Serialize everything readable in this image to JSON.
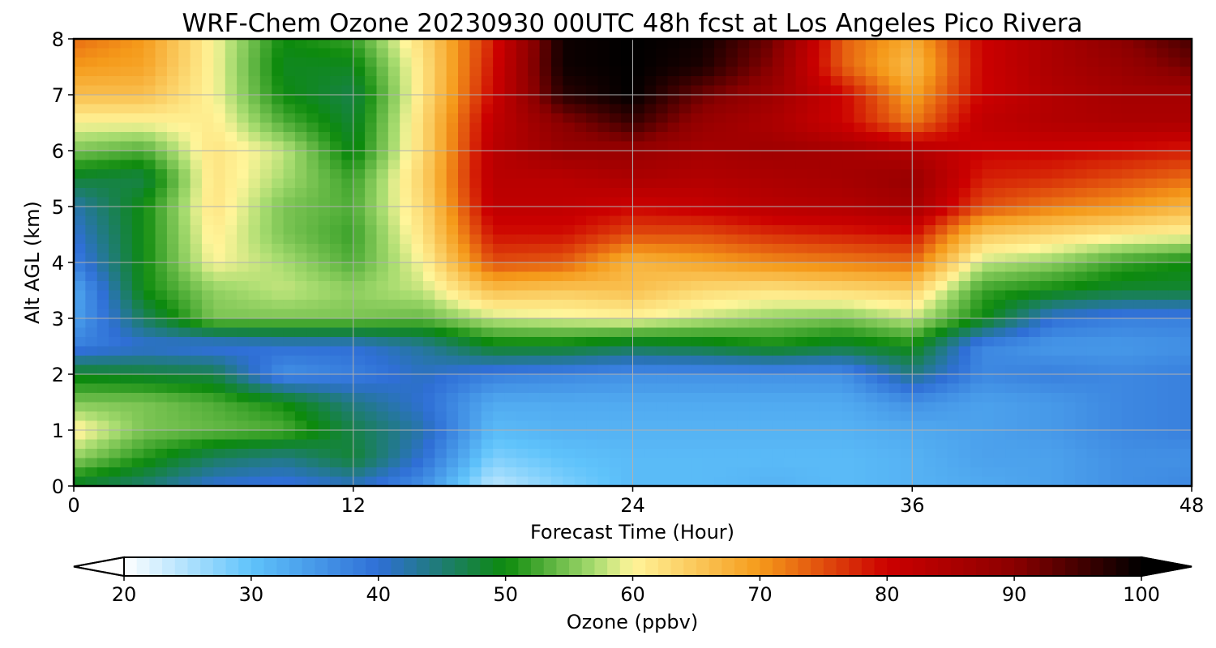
{
  "chart_data": {
    "type": "heatmap",
    "title": "WRF-Chem Ozone  20230930 00UTC 48h fcst at Los Angeles Pico Rivera",
    "xlabel": "Forecast Time (Hour)",
    "ylabel": "Alt AGL (km)",
    "xlim": [
      0,
      48
    ],
    "ylim": [
      0,
      8
    ],
    "xticks": [
      0,
      12,
      24,
      36,
      48
    ],
    "yticks": [
      0,
      1,
      2,
      3,
      4,
      5,
      6,
      7,
      8
    ],
    "grid": true,
    "colorbar": {
      "label": "Ozone  (ppbv)",
      "min": 20,
      "max": 100,
      "ticks": [
        20,
        30,
        40,
        50,
        60,
        70,
        80,
        90,
        100
      ],
      "extend": "both",
      "colors": [
        "#ffffff",
        "#5fc3fb",
        "#2f6fd6",
        "#0d8a0d",
        "#a8dc70",
        "#fff59a",
        "#f59a1a",
        "#cc0000",
        "#8b0000",
        "#000000"
      ],
      "color_stops": [
        20,
        30,
        40,
        50,
        57,
        60,
        70,
        80,
        90,
        100
      ]
    },
    "x_hours": [
      0,
      3,
      6,
      9,
      12,
      15,
      18,
      21,
      24,
      27,
      30,
      33,
      36,
      39,
      42,
      45,
      48
    ],
    "y_km": [
      0,
      0.5,
      1,
      1.5,
      2,
      2.5,
      3,
      3.5,
      4,
      4.5,
      5,
      5.5,
      6,
      6.5,
      7,
      7.5,
      8
    ],
    "values_ppbv": [
      [
        48,
        45,
        40,
        39,
        41,
        36,
        24,
        28,
        31,
        31,
        32,
        31,
        32,
        33,
        34,
        36,
        37
      ],
      [
        56,
        51,
        46,
        44,
        48,
        40,
        28,
        30,
        31,
        31,
        31,
        31,
        32,
        34,
        34,
        36,
        36
      ],
      [
        61,
        55,
        54,
        53,
        47,
        42,
        31,
        32,
        32,
        32,
        32,
        32,
        33,
        34,
        35,
        37,
        38
      ],
      [
        55,
        55,
        53,
        50,
        44,
        40,
        33,
        33,
        33,
        33,
        33,
        33,
        36,
        34,
        35,
        37,
        38
      ],
      [
        49,
        48,
        47,
        36,
        38,
        41,
        38,
        37,
        36,
        36,
        36,
        36,
        44,
        37,
        38,
        37,
        38
      ],
      [
        38,
        40,
        39,
        40,
        40,
        43,
        49,
        49,
        47,
        48,
        50,
        48,
        50,
        37,
        35,
        35,
        36
      ],
      [
        34,
        46,
        55,
        55,
        55,
        54,
        58,
        59,
        60,
        58,
        56,
        55,
        58,
        50,
        40,
        38,
        38
      ],
      [
        33,
        50,
        56,
        58,
        56,
        58,
        66,
        65,
        66,
        63,
        62,
        63,
        64,
        52,
        50,
        48,
        48
      ],
      [
        38,
        50,
        60,
        57,
        53,
        60,
        75,
        74,
        67,
        69,
        71,
        72,
        73,
        58,
        56,
        52,
        50
      ],
      [
        40,
        50,
        61,
        55,
        52,
        62,
        79,
        79,
        75,
        75,
        77,
        78,
        79,
        65,
        63,
        61,
        60
      ],
      [
        42,
        50,
        62,
        55,
        53,
        63,
        82,
        82,
        80,
        81,
        83,
        84,
        86,
        75,
        72,
        70,
        67
      ],
      [
        48,
        47,
        62,
        57,
        52,
        64,
        83,
        83,
        85,
        84,
        85,
        86,
        88,
        78,
        77,
        75,
        73
      ],
      [
        55,
        53,
        62,
        58,
        49,
        63,
        83,
        88,
        88,
        86,
        87,
        86,
        84,
        80,
        80,
        79,
        78
      ],
      [
        60,
        60,
        61,
        53,
        48,
        63,
        82,
        90,
        96,
        88,
        85,
        80,
        72,
        82,
        84,
        85,
        85
      ],
      [
        66,
        66,
        60,
        50,
        47,
        62,
        80,
        97,
        100,
        92,
        87,
        80,
        69,
        80,
        84,
        86,
        86
      ],
      [
        70,
        69,
        60,
        49,
        49,
        62,
        79,
        99,
        100,
        98,
        90,
        74,
        66,
        80,
        85,
        88,
        92
      ],
      [
        73,
        70,
        60,
        50,
        52,
        63,
        78,
        99,
        100,
        99,
        92,
        74,
        68,
        80,
        85,
        90,
        95
      ]
    ]
  }
}
